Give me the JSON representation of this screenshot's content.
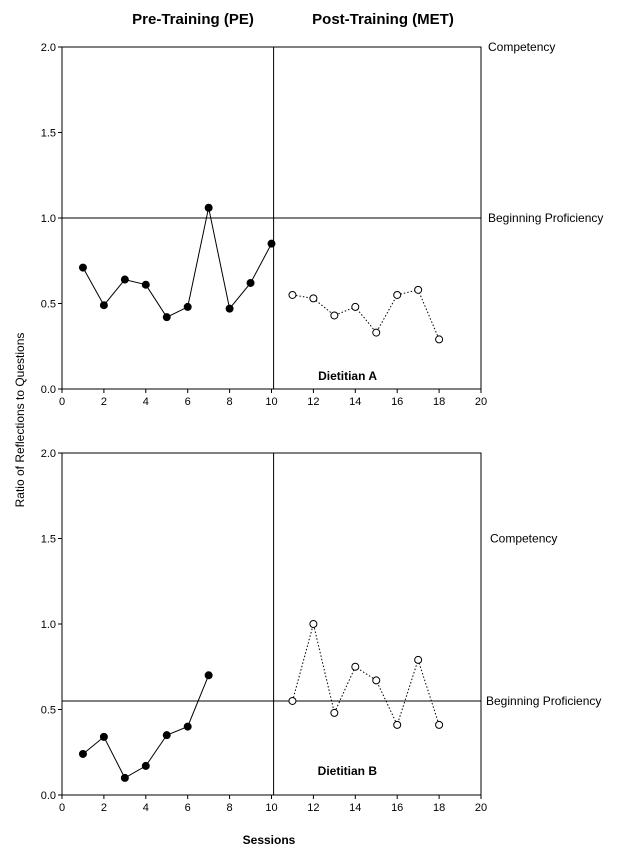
{
  "header": {
    "pre_title": "Pre-Training (PE)",
    "post_title": "Post-Training (MET)"
  },
  "ylabel": "Ratio of Reflections to Questions",
  "xlabel": "Sessions",
  "chart_data": [
    {
      "type": "line",
      "panel_label": "Dietitian A",
      "xlim": [
        0,
        20
      ],
      "ylim": [
        0,
        2
      ],
      "xticks": [
        0,
        2,
        4,
        6,
        8,
        10,
        12,
        14,
        16,
        18,
        20
      ],
      "yticks": [
        0.0,
        0.5,
        1.0,
        1.5,
        2.0
      ],
      "ytick_labels": [
        "0.0",
        "0.5",
        "1.0",
        "1.5",
        "2.0"
      ],
      "phase_change_x": 10.1,
      "reference_lines": [
        {
          "label": "Competency",
          "y": 2.0,
          "drawn": false
        },
        {
          "label": "Beginning Proficiency",
          "y": 1.0,
          "drawn": true
        }
      ],
      "series": [
        {
          "marker": "filled-circle",
          "line": "solid",
          "x": [
            1,
            2,
            3,
            4,
            5,
            6,
            7,
            8,
            9,
            10
          ],
          "y": [
            0.71,
            0.49,
            0.64,
            0.61,
            0.42,
            0.48,
            1.06,
            0.47,
            0.62,
            0.85
          ]
        },
        {
          "marker": "open-circle",
          "line": "dotted",
          "x": [
            11,
            12,
            13,
            14,
            15,
            16,
            17,
            18
          ],
          "y": [
            0.55,
            0.53,
            0.43,
            0.48,
            0.33,
            0.55,
            0.58,
            0.29
          ]
        }
      ]
    },
    {
      "type": "line",
      "panel_label": "Dietitian B",
      "xlim": [
        0,
        20
      ],
      "ylim": [
        0,
        2
      ],
      "xticks": [
        0,
        2,
        4,
        6,
        8,
        10,
        12,
        14,
        16,
        18,
        20
      ],
      "yticks": [
        0.0,
        0.5,
        1.0,
        1.5,
        2.0
      ],
      "ytick_labels": [
        "0.0",
        "0.5",
        "1.0",
        "1.5",
        "2.0"
      ],
      "phase_change_x": 10.1,
      "reference_lines": [
        {
          "label": "Competency",
          "y": 1.5,
          "drawn": false
        },
        {
          "label": "Beginning Proficiency",
          "y": 0.55,
          "drawn": true
        }
      ],
      "series": [
        {
          "marker": "filled-circle",
          "line": "solid",
          "x": [
            1,
            2,
            3,
            4,
            5,
            6,
            7
          ],
          "y": [
            0.24,
            0.34,
            0.1,
            0.17,
            0.35,
            0.4,
            0.7
          ]
        },
        {
          "marker": "open-circle",
          "line": "dotted",
          "x": [
            11,
            12,
            13,
            14,
            15,
            16,
            17,
            18
          ],
          "y": [
            0.55,
            1.0,
            0.48,
            0.75,
            0.67,
            0.41,
            0.79,
            0.41
          ]
        }
      ]
    }
  ]
}
